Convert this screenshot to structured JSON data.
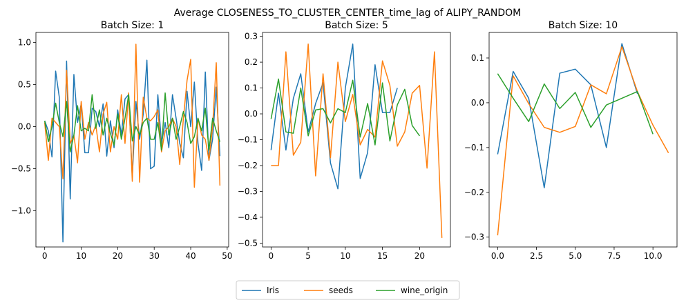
{
  "chart_data": {
    "type": "line",
    "title": "Average CLOSENESS_TO_CLUSTER_CENTER_time_lag of ALIPY_RANDOM",
    "legend": {
      "placement": "bottom-center",
      "entries": [
        "Iris",
        "seeds",
        "wine_origin"
      ]
    },
    "colors": {
      "Iris": "#1f77b4",
      "seeds": "#ff7f0e",
      "wine_origin": "#2ca02c"
    },
    "subplots": [
      {
        "title": "Batch Size: 1",
        "xlim": [
          -2.4,
          50.4
        ],
        "ylim": [
          -1.43,
          1.12
        ],
        "xticks": [
          0,
          10,
          20,
          30,
          40,
          50
        ],
        "xtick_labels": [
          "0",
          "10",
          "20",
          "30",
          "40",
          "50"
        ],
        "yticks": [
          -1.0,
          -0.5,
          0.0,
          0.5,
          1.0
        ],
        "ytick_labels": [
          "−1.0",
          "−0.5",
          "0.0",
          "0.5",
          "1.0"
        ],
        "series": [
          {
            "name": "Iris",
            "x": [
              0,
              1,
              2,
              3,
              4,
              5,
              6,
              7,
              8,
              9,
              10,
              11,
              12,
              13,
              14,
              15,
              16,
              17,
              18,
              19,
              20,
              21,
              22,
              23,
              24,
              25,
              26,
              27,
              28,
              29,
              30,
              31,
              32,
              33,
              34,
              35,
              36,
              37,
              38,
              39,
              40,
              41,
              42,
              43,
              44,
              45,
              46,
              47,
              48
            ],
            "y": [
              0.07,
              -0.05,
              -0.36,
              0.66,
              0.35,
              -1.37,
              0.78,
              -0.86,
              0.62,
              0.05,
              0.27,
              -0.31,
              -0.31,
              0.22,
              0.18,
              0.0,
              0.27,
              -0.35,
              0.07,
              -0.25,
              0.2,
              -0.1,
              0.33,
              0.38,
              -0.6,
              0.3,
              -0.15,
              0.15,
              0.79,
              -0.5,
              -0.47,
              0.38,
              -0.2,
              0.05,
              -0.25,
              0.38,
              0.1,
              -0.2,
              -0.37,
              0.42,
              0.0,
              0.53,
              -0.2,
              -0.52,
              0.65,
              -0.4,
              -0.15,
              0.47,
              -0.35
            ]
          },
          {
            "name": "seeds",
            "x": [
              0,
              1,
              2,
              3,
              4,
              5,
              6,
              7,
              8,
              9,
              10,
              11,
              12,
              13,
              14,
              15,
              16,
              17,
              18,
              19,
              20,
              21,
              22,
              23,
              24,
              25,
              26,
              27,
              28,
              29,
              30,
              31,
              32,
              33,
              34,
              35,
              36,
              37,
              38,
              39,
              40,
              41,
              42,
              43,
              44,
              45,
              46,
              47,
              48
            ],
            "y": [
              0.05,
              -0.4,
              0.1,
              0.05,
              0.0,
              -0.62,
              0.67,
              -0.2,
              -0.1,
              -0.43,
              0.3,
              -0.15,
              0.05,
              -0.1,
              0.02,
              -0.3,
              0.15,
              0.29,
              -0.3,
              0.0,
              -0.15,
              0.38,
              -0.2,
              0.4,
              -0.65,
              0.98,
              -0.66,
              0.35,
              0.1,
              0.07,
              0.12,
              0.2,
              -0.3,
              -0.05,
              0.0,
              0.1,
              0.0,
              -0.45,
              0.1,
              0.55,
              0.8,
              -0.72,
              0.1,
              -0.1,
              -0.15,
              -0.4,
              0.0,
              0.76,
              -0.7
            ]
          },
          {
            "name": "wine_origin",
            "x": [
              0,
              1,
              2,
              3,
              4,
              5,
              6,
              7,
              8,
              9,
              10,
              11,
              12,
              13,
              14,
              15,
              16,
              17,
              18,
              19,
              20,
              21,
              22,
              23,
              24,
              25,
              26,
              27,
              28,
              29,
              30,
              31,
              32,
              33,
              34,
              35,
              36,
              37,
              38,
              39,
              40,
              41,
              42,
              43,
              44,
              45,
              46,
              47,
              48
            ],
            "y": [
              0.07,
              -0.18,
              0.0,
              0.28,
              0.05,
              -0.12,
              0.3,
              -0.3,
              -0.1,
              0.25,
              -0.05,
              -0.02,
              -0.05,
              0.38,
              -0.02,
              0.2,
              -0.1,
              0.1,
              -0.08,
              -0.22,
              0.15,
              -0.15,
              0.1,
              0.38,
              -0.17,
              0.0,
              -0.1,
              0.05,
              0.1,
              -0.15,
              -0.15,
              0.05,
              -0.28,
              0.4,
              -0.1,
              0.1,
              -0.15,
              0.0,
              0.18,
              0.05,
              -0.2,
              -0.12,
              0.1,
              -0.05,
              0.22,
              -0.28,
              0.1,
              -0.05,
              -0.18
            ]
          }
        ]
      },
      {
        "title": "Batch Size: 5",
        "xlim": [
          -1.15,
          24.15
        ],
        "ylim": [
          -0.515,
          0.315
        ],
        "xticks": [
          0,
          5,
          10,
          15,
          20
        ],
        "xtick_labels": [
          "0",
          "5",
          "10",
          "15",
          "20"
        ],
        "yticks": [
          -0.5,
          -0.4,
          -0.3,
          -0.2,
          -0.1,
          0.0,
          0.1,
          0.2,
          0.3
        ],
        "ytick_labels": [
          "−0.5",
          "−0.4",
          "−0.3",
          "−0.2",
          "−0.1",
          "0.0",
          "0.1",
          "0.2",
          "0.3"
        ],
        "series": [
          {
            "name": "Iris",
            "x": [
              0,
              1,
              2,
              3,
              4,
              5,
              6,
              7,
              8,
              9,
              10,
              11,
              12,
              13,
              14,
              15,
              16,
              17
            ],
            "y": [
              -0.14,
              0.08,
              -0.14,
              0.06,
              0.155,
              -0.07,
              0.04,
              0.12,
              -0.19,
              -0.29,
              0.1,
              0.27,
              -0.25,
              -0.15,
              0.19,
              0.005,
              0.005,
              0.1
            ]
          },
          {
            "name": "seeds",
            "x": [
              0,
              1,
              2,
              3,
              4,
              5,
              6,
              7,
              8,
              9,
              10,
              11,
              12,
              13,
              14,
              15,
              16,
              17,
              18,
              19,
              20,
              21,
              22,
              23
            ],
            "y": [
              -0.2,
              -0.2,
              0.24,
              -0.16,
              -0.11,
              0.27,
              -0.24,
              0.155,
              -0.17,
              0.2,
              -0.03,
              0.075,
              -0.12,
              -0.06,
              -0.09,
              0.205,
              0.11,
              -0.125,
              -0.07,
              0.08,
              0.11,
              -0.21,
              0.24,
              -0.48
            ]
          },
          {
            "name": "wine_origin",
            "x": [
              0,
              1,
              2,
              3,
              4,
              5,
              6,
              7,
              8,
              9,
              10,
              11,
              12,
              13,
              14,
              15,
              16,
              17,
              18,
              19,
              20
            ],
            "y": [
              -0.02,
              0.135,
              -0.07,
              -0.075,
              0.1,
              -0.085,
              0.015,
              0.02,
              -0.035,
              0.02,
              0.005,
              0.13,
              -0.09,
              0.04,
              -0.12,
              0.12,
              -0.105,
              0.035,
              0.095,
              -0.045,
              -0.085
            ]
          }
        ]
      },
      {
        "title": "Batch Size: 10",
        "xlim": [
          -0.55,
          11.55
        ],
        "ylim": [
          -0.322,
          0.157
        ],
        "xticks": [
          0.0,
          2.5,
          5.0,
          7.5,
          10.0
        ],
        "xtick_labels": [
          "0.0",
          "2.5",
          "5.0",
          "7.5",
          "10.0"
        ],
        "yticks": [
          -0.3,
          -0.2,
          -0.1,
          0.0,
          0.1
        ],
        "ytick_labels": [
          "−0.3",
          "−0.2",
          "−0.1",
          "0.0",
          "0.1"
        ],
        "series": [
          {
            "name": "Iris",
            "x": [
              0,
              1,
              2,
              3,
              4,
              5,
              6,
              7,
              8,
              9
            ],
            "y": [
              -0.115,
              0.07,
              0.01,
              -0.19,
              0.066,
              0.075,
              0.04,
              -0.1,
              0.132,
              0.02
            ]
          },
          {
            "name": "seeds",
            "x": [
              0,
              1,
              2,
              3,
              4,
              5,
              6,
              7,
              8,
              9,
              10,
              11
            ],
            "y": [
              -0.296,
              0.06,
              -0.002,
              -0.055,
              -0.066,
              -0.053,
              0.04,
              0.02,
              0.125,
              0.025,
              -0.05,
              -0.112
            ]
          },
          {
            "name": "wine_origin",
            "x": [
              0,
              1,
              2,
              3,
              4,
              5,
              6,
              7,
              8,
              9,
              10
            ],
            "y": [
              0.065,
              0.01,
              -0.042,
              0.042,
              -0.013,
              0.023,
              -0.055,
              -0.005,
              0.01,
              0.025,
              -0.07
            ]
          }
        ]
      }
    ]
  }
}
